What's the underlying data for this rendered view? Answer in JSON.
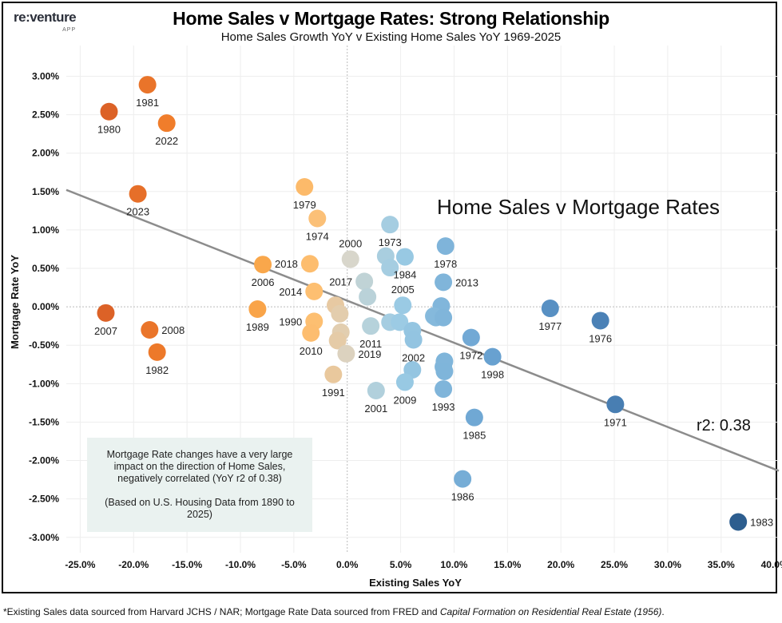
{
  "logo": {
    "name": "re:venture",
    "sub": "APP"
  },
  "title": "Home Sales v Mortgage Rates: Strong Relationship",
  "subtitle": "Home Sales Growth YoY v Existing Home Sales YoY 1969-2025",
  "note": {
    "line1": "Mortgage Rate changes have a very large impact on the direction of Home Sales, negatively correlated (YoY r2 of 0.38)",
    "line2": "(Based on U.S. Housing Data from 1890 to 2025)"
  },
  "footer": {
    "text": "*Existing Sales data sourced from Harvard JCHS / NAR; Mortgage Rate Data sourced from FRED and ",
    "italic": "Capital Formation on Residential Real Estate (1956)",
    "end": "."
  },
  "chart_data": {
    "type": "scatter",
    "title": "Home Sales v Mortgage Rates: Strong Relationship",
    "annotation": "Home Sales v Mortgage Rates",
    "r2_label": "r2: 0.38",
    "xlabel": "Existing Sales YoY",
    "ylabel": "Mortgage Rate YoY",
    "xlim": [
      -26.3,
      40.4
    ],
    "ylim": [
      -3.2,
      3.4
    ],
    "x_ticks": [
      "-25.0%",
      "-20.0%",
      "-15.0%",
      "-10.0%",
      "-5.0%",
      "0.0%",
      "5.0%",
      "10.0%",
      "15.0%",
      "20.0%",
      "25.0%",
      "30.0%",
      "35.0%",
      "40.0%"
    ],
    "x_tick_values": [
      -25,
      -20,
      -15,
      -10,
      -5,
      0,
      5,
      10,
      15,
      20,
      25,
      30,
      35,
      40
    ],
    "y_ticks": [
      "3.00%",
      "2.50%",
      "2.00%",
      "1.50%",
      "1.00%",
      "0.50%",
      "0.00%",
      "-0.50%",
      "-1.00%",
      "-1.50%",
      "-2.00%",
      "-2.50%",
      "-3.00%"
    ],
    "y_tick_values": [
      3,
      2.5,
      2,
      1.5,
      1,
      0.5,
      0,
      -0.5,
      -1,
      -1.5,
      -2,
      -2.5,
      -3
    ],
    "grid": true,
    "trendline": {
      "slope": -0.0548,
      "intercept": 0.08,
      "color": "#8c8c8c"
    },
    "color_scale": [
      {
        "x": -22,
        "color": "#dc6227"
      },
      {
        "x": -17,
        "color": "#f07d2b"
      },
      {
        "x": -8,
        "color": "#f9a64a"
      },
      {
        "x": -3,
        "color": "#fdbf72"
      },
      {
        "x": -1,
        "color": "#e6caa4"
      },
      {
        "x": 0.3,
        "color": "#d8d6cb"
      },
      {
        "x": 2,
        "color": "#b8d2da"
      },
      {
        "x": 5,
        "color": "#9bcbe4"
      },
      {
        "x": 9,
        "color": "#80b5da"
      },
      {
        "x": 13,
        "color": "#6aa3d2"
      },
      {
        "x": 22,
        "color": "#4f86bb"
      },
      {
        "x": 37,
        "color": "#2c5d8e"
      }
    ],
    "points": [
      {
        "year": "1981",
        "x": -18.7,
        "y": 2.89,
        "pos": "below"
      },
      {
        "year": "1980",
        "x": -22.3,
        "y": 2.54,
        "pos": "below"
      },
      {
        "year": "2022",
        "x": -16.9,
        "y": 2.39,
        "pos": "below"
      },
      {
        "year": "2023",
        "x": -19.6,
        "y": 1.47,
        "pos": "below"
      },
      {
        "year": "2007",
        "x": -22.6,
        "y": -0.08,
        "pos": "below"
      },
      {
        "year": "2008",
        "x": -18.5,
        "y": -0.3,
        "pos": "right"
      },
      {
        "year": "1982",
        "x": -17.8,
        "y": -0.59,
        "pos": "below"
      },
      {
        "year": "1979",
        "x": -4.0,
        "y": 1.56,
        "pos": "below"
      },
      {
        "year": "1974",
        "x": -2.8,
        "y": 1.15,
        "pos": "below"
      },
      {
        "year": "2006",
        "x": -7.9,
        "y": 0.55,
        "pos": "below"
      },
      {
        "year": "2018",
        "x": -3.5,
        "y": 0.56,
        "pos": "left"
      },
      {
        "year": "2014",
        "x": -3.1,
        "y": 0.2,
        "pos": "left"
      },
      {
        "year": "1989",
        "x": -8.4,
        "y": -0.03,
        "pos": "below"
      },
      {
        "year": "1990",
        "x": -3.1,
        "y": -0.19,
        "pos": "left"
      },
      {
        "year": "2010",
        "x": -3.4,
        "y": -0.34,
        "pos": "below"
      },
      {
        "year": "",
        "x": -1.1,
        "y": 0.02
      },
      {
        "year": "",
        "x": -0.7,
        "y": -0.09
      },
      {
        "year": "",
        "x": -0.6,
        "y": -0.33
      },
      {
        "year": "",
        "x": -0.9,
        "y": -0.44
      },
      {
        "year": "2019",
        "x": -0.1,
        "y": -0.61,
        "pos": "right"
      },
      {
        "year": "1991",
        "x": -1.3,
        "y": -0.88,
        "pos": "below"
      },
      {
        "year": "2000",
        "x": 0.3,
        "y": 0.62,
        "pos": "above"
      },
      {
        "year": "2017",
        "x": 1.6,
        "y": 0.33,
        "pos": "left"
      },
      {
        "year": "",
        "x": 1.9,
        "y": 0.13
      },
      {
        "year": "2011",
        "x": 2.2,
        "y": -0.25,
        "pos": "below"
      },
      {
        "year": "2001",
        "x": 2.7,
        "y": -1.09,
        "pos": "below"
      },
      {
        "year": "1973",
        "x": 4.0,
        "y": 1.07,
        "pos": "below"
      },
      {
        "year": "",
        "x": 3.6,
        "y": 0.66
      },
      {
        "year": "",
        "x": 4.0,
        "y": 0.51
      },
      {
        "year": "1984",
        "x": 5.4,
        "y": 0.65,
        "pos": "below"
      },
      {
        "year": "1978",
        "x": 9.2,
        "y": 0.79,
        "pos": "below"
      },
      {
        "year": "2013",
        "x": 9.0,
        "y": 0.32,
        "pos": "right"
      },
      {
        "year": "2005",
        "x": 5.2,
        "y": 0.02,
        "pos": "above"
      },
      {
        "year": "",
        "x": 8.8,
        "y": 0.01
      },
      {
        "year": "",
        "x": 8.1,
        "y": -0.12
      },
      {
        "year": "",
        "x": 8.3,
        "y": -0.14
      },
      {
        "year": "",
        "x": 9.0,
        "y": -0.14
      },
      {
        "year": "",
        "x": 4.0,
        "y": -0.2
      },
      {
        "year": "",
        "x": 4.9,
        "y": -0.2
      },
      {
        "year": "",
        "x": 6.1,
        "y": -0.31
      },
      {
        "year": "2002",
        "x": 6.2,
        "y": -0.43,
        "pos": "below"
      },
      {
        "year": "1972",
        "x": 11.6,
        "y": -0.4,
        "pos": "below"
      },
      {
        "year": "1998",
        "x": 13.6,
        "y": -0.65,
        "pos": "below"
      },
      {
        "year": "",
        "x": 9.1,
        "y": -0.71
      },
      {
        "year": "",
        "x": 9.0,
        "y": -0.78
      },
      {
        "year": "",
        "x": 9.1,
        "y": -0.84
      },
      {
        "year": "",
        "x": 6.1,
        "y": -0.82
      },
      {
        "year": "2009",
        "x": 5.4,
        "y": -0.98,
        "pos": "below"
      },
      {
        "year": "1993",
        "x": 9.0,
        "y": -1.07,
        "pos": "below"
      },
      {
        "year": "1977",
        "x": 19.0,
        "y": -0.02,
        "pos": "below"
      },
      {
        "year": "1976",
        "x": 23.7,
        "y": -0.18,
        "pos": "below"
      },
      {
        "year": "1971",
        "x": 25.1,
        "y": -1.27,
        "pos": "below"
      },
      {
        "year": "1985",
        "x": 11.9,
        "y": -1.44,
        "pos": "below"
      },
      {
        "year": "1986",
        "x": 10.8,
        "y": -2.24,
        "pos": "below"
      },
      {
        "year": "1983",
        "x": 36.6,
        "y": -2.8,
        "pos": "right"
      }
    ]
  }
}
